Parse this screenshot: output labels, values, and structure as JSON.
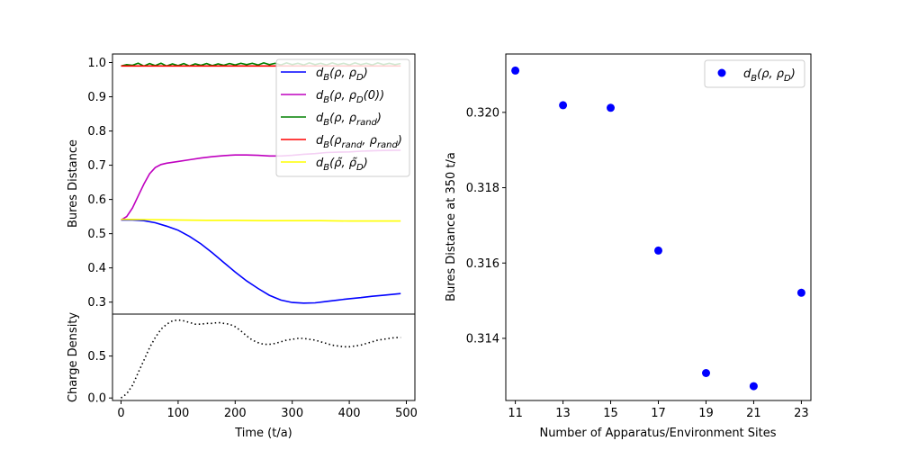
{
  "chart_data": [
    {
      "type": "line",
      "panel": "top-left",
      "xlabel": "",
      "ylabel": "Bures Distance",
      "xlim": [
        -15,
        515
      ],
      "ylim": [
        0.265,
        1.025
      ],
      "yticks": [
        "0.3",
        "0.4",
        "0.5",
        "0.6",
        "0.7",
        "0.8",
        "0.9",
        "1.0"
      ],
      "legend_position": "top-right",
      "series": [
        {
          "name": "dB(rho,rhoD)",
          "legend_label": "d_B(ρ, ρ_D)",
          "color": "#0000ff",
          "x": [
            0,
            20,
            40,
            60,
            80,
            100,
            120,
            140,
            160,
            180,
            200,
            220,
            240,
            260,
            280,
            300,
            320,
            340,
            360,
            380,
            400,
            420,
            440,
            460,
            490
          ],
          "y": [
            0.54,
            0.54,
            0.538,
            0.532,
            0.522,
            0.51,
            0.492,
            0.47,
            0.444,
            0.416,
            0.388,
            0.362,
            0.34,
            0.32,
            0.306,
            0.299,
            0.297,
            0.298,
            0.302,
            0.306,
            0.31,
            0.313,
            0.317,
            0.32,
            0.325
          ]
        },
        {
          "name": "dB(rho,rhoD(0))",
          "legend_label": "d_B(ρ, ρ_D(0))",
          "color": "#bf00bf",
          "x": [
            0,
            10,
            20,
            30,
            40,
            50,
            60,
            70,
            80,
            100,
            120,
            140,
            160,
            180,
            200,
            220,
            240,
            260,
            280,
            300,
            320,
            340,
            360,
            380,
            400,
            420,
            440,
            460,
            490
          ],
          "y": [
            0.54,
            0.55,
            0.575,
            0.61,
            0.645,
            0.675,
            0.693,
            0.702,
            0.706,
            0.711,
            0.716,
            0.721,
            0.725,
            0.728,
            0.73,
            0.73,
            0.729,
            0.727,
            0.727,
            0.729,
            0.732,
            0.734,
            0.737,
            0.738,
            0.739,
            0.741,
            0.742,
            0.743,
            0.744
          ]
        },
        {
          "name": "dB(rho,rhorand)",
          "legend_label": "d_B(ρ, ρ_rand)",
          "color": "#008000",
          "x": [
            0,
            10,
            20,
            30,
            40,
            50,
            60,
            70,
            80,
            90,
            100,
            110,
            120,
            130,
            140,
            150,
            160,
            170,
            180,
            190,
            200,
            210,
            220,
            230,
            240,
            250,
            260,
            270,
            280,
            290,
            300,
            310,
            320,
            330,
            340,
            350,
            360,
            370,
            380,
            390,
            400,
            410,
            420,
            430,
            440,
            450,
            460,
            470,
            480,
            490
          ],
          "y": [
            0.99,
            0.994,
            0.992,
            0.998,
            0.99,
            0.997,
            0.991,
            0.998,
            0.99,
            0.996,
            0.991,
            0.997,
            0.99,
            0.996,
            0.992,
            0.997,
            0.991,
            0.996,
            0.992,
            0.997,
            0.993,
            0.998,
            0.994,
            0.998,
            0.993,
            0.999,
            0.994,
            0.998,
            0.993,
            0.999,
            0.994,
            0.998,
            0.993,
            0.999,
            0.994,
            0.998,
            0.993,
            0.999,
            0.994,
            0.998,
            0.993,
            0.999,
            0.994,
            0.998,
            0.993,
            0.999,
            0.994,
            0.998,
            0.994,
            0.997
          ]
        },
        {
          "name": "dB(rhorand,rhorand)",
          "legend_label": "d_B(ρ_rand, ρ_rand)",
          "color": "#ff0000",
          "x": [
            0,
            490
          ],
          "y": [
            0.99,
            0.99
          ]
        },
        {
          "name": "dB(rhotilde,rhoDtilde)",
          "legend_label": "d_B(ρ̃, ρ̃_D)",
          "color": "#ffff00",
          "x": [
            0,
            50,
            100,
            150,
            200,
            250,
            300,
            350,
            400,
            450,
            490
          ],
          "y": [
            0.542,
            0.541,
            0.54,
            0.539,
            0.539,
            0.538,
            0.538,
            0.538,
            0.537,
            0.537,
            0.537
          ]
        }
      ]
    },
    {
      "type": "line",
      "panel": "bottom-left",
      "xlabel": "Time (t/a)",
      "ylabel": "Charge Density",
      "xlim": [
        -15,
        515
      ],
      "ylim": [
        -0.03,
        1.0
      ],
      "xticks": [
        "0",
        "100",
        "200",
        "300",
        "400",
        "500"
      ],
      "yticks": [
        "0.0",
        "0.5"
      ],
      "series": [
        {
          "name": "charge-density",
          "color": "#000000",
          "style": "dotted",
          "x": [
            0,
            10,
            20,
            30,
            40,
            50,
            60,
            70,
            80,
            90,
            100,
            110,
            120,
            130,
            140,
            150,
            160,
            170,
            180,
            190,
            200,
            210,
            220,
            230,
            240,
            250,
            260,
            270,
            280,
            290,
            300,
            310,
            320,
            330,
            340,
            350,
            360,
            370,
            380,
            390,
            400,
            410,
            420,
            430,
            440,
            450,
            460,
            470,
            480,
            490
          ],
          "y": [
            0.0,
            0.05,
            0.15,
            0.3,
            0.45,
            0.6,
            0.72,
            0.82,
            0.88,
            0.92,
            0.93,
            0.92,
            0.9,
            0.88,
            0.88,
            0.89,
            0.89,
            0.9,
            0.89,
            0.88,
            0.85,
            0.8,
            0.74,
            0.69,
            0.66,
            0.64,
            0.64,
            0.65,
            0.67,
            0.69,
            0.7,
            0.71,
            0.71,
            0.7,
            0.69,
            0.67,
            0.65,
            0.63,
            0.62,
            0.61,
            0.61,
            0.62,
            0.63,
            0.65,
            0.67,
            0.69,
            0.7,
            0.71,
            0.72,
            0.72
          ]
        }
      ]
    },
    {
      "type": "scatter",
      "panel": "right",
      "xlabel": "Number of Apparatus/Environment Sites",
      "ylabel": "Bures Distance at 350 t/a",
      "xlim": [
        10.6,
        23.4
      ],
      "ylim": [
        0.31235,
        0.32155
      ],
      "xticks": [
        "11",
        "13",
        "15",
        "17",
        "19",
        "21",
        "23"
      ],
      "yticks": [
        "0.314",
        "0.316",
        "0.318",
        "0.320"
      ],
      "legend_position": "top-right",
      "series": [
        {
          "name": "dB(rho,rhoD)",
          "legend_label": "d_B(ρ, ρ_D)",
          "color": "#0000ff",
          "x": [
            11,
            13,
            15,
            17,
            19,
            21,
            23
          ],
          "y": [
            0.32111,
            0.32019,
            0.32012,
            0.31633,
            0.31308,
            0.31273,
            0.31521
          ]
        }
      ]
    }
  ]
}
